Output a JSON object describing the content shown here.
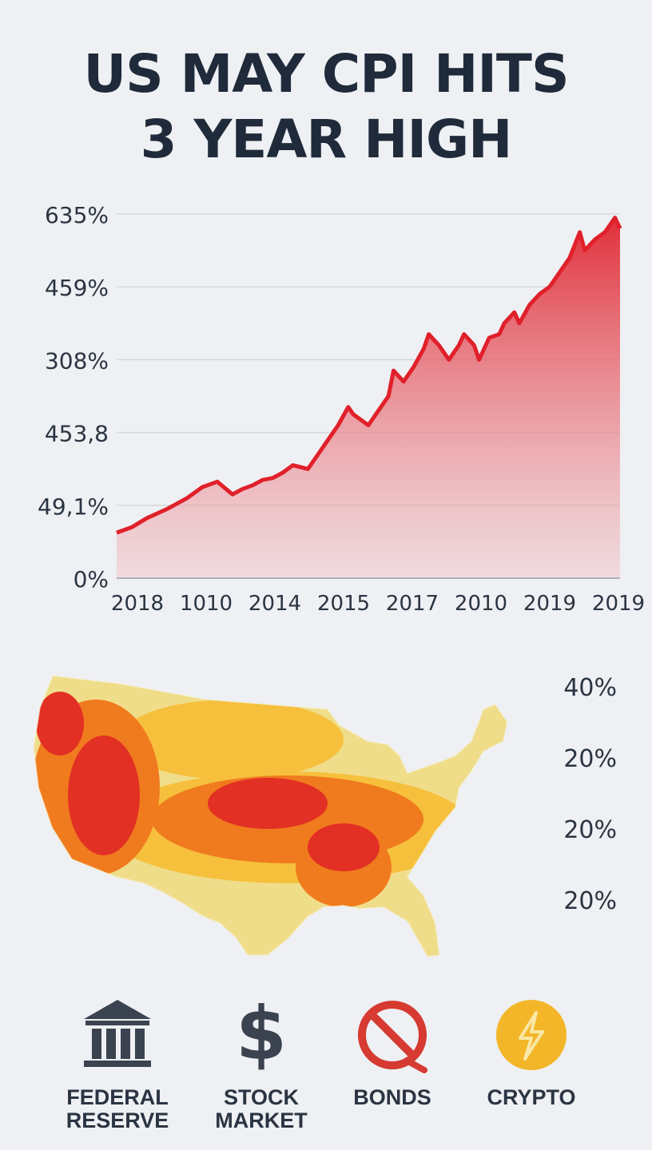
{
  "title": {
    "line1": "US MAY CPI HITS",
    "line2": "3 YEAR HIGH"
  },
  "chart_data": {
    "type": "area",
    "title": "US MAY CPI HITS 3 YEAR HIGH",
    "y_tick_labels": [
      "635%",
      "459%",
      "308%",
      "453,8",
      "49,1%",
      "0%"
    ],
    "x_tick_labels": [
      "2018",
      "1010",
      "2014",
      "2015",
      "2017",
      "2010",
      "2019",
      "2019"
    ],
    "series": [
      {
        "color": "#e0202a",
        "x": [
          0,
          0.03,
          0.06,
          0.1,
          0.14,
          0.17,
          0.2,
          0.23,
          0.25,
          0.27,
          0.29,
          0.31,
          0.33,
          0.35,
          0.38,
          0.4,
          0.42,
          0.44,
          0.46,
          0.47,
          0.49,
          0.5,
          0.52,
          0.54,
          0.55,
          0.57,
          0.59,
          0.61,
          0.62,
          0.64,
          0.66,
          0.68,
          0.69,
          0.71,
          0.72,
          0.74,
          0.76,
          0.77,
          0.79,
          0.8,
          0.82,
          0.84,
          0.86,
          0.88,
          0.9,
          0.92,
          0.93,
          0.95,
          0.97,
          0.99,
          1.0
        ],
        "y": [
          0.125,
          0.14,
          0.165,
          0.19,
          0.22,
          0.25,
          0.265,
          0.23,
          0.245,
          0.255,
          0.27,
          0.275,
          0.29,
          0.31,
          0.3,
          0.34,
          0.38,
          0.42,
          0.47,
          0.45,
          0.43,
          0.42,
          0.46,
          0.5,
          0.57,
          0.54,
          0.58,
          0.63,
          0.67,
          0.64,
          0.6,
          0.64,
          0.67,
          0.64,
          0.6,
          0.66,
          0.67,
          0.7,
          0.73,
          0.7,
          0.75,
          0.78,
          0.8,
          0.84,
          0.88,
          0.95,
          0.9,
          0.93,
          0.95,
          0.99,
          0.96
        ]
      }
    ],
    "ylim": [
      0,
      1
    ],
    "grid": true
  },
  "map_legend": [
    "40%",
    "20%",
    "20%",
    "20%"
  ],
  "map_colors": {
    "high": "#e23024",
    "mid": "#f07b1e",
    "low": "#f6c03c",
    "base": "#f0dd8a"
  },
  "icons": [
    {
      "name": "bank-icon",
      "label": "FEDERAL RESERVE",
      "line1": "FEDERAL",
      "line2": "RESERVE"
    },
    {
      "name": "dollar-icon",
      "label": "STOCK MARKET",
      "line1": "STOCK",
      "line2": "MARKET"
    },
    {
      "name": "prohibited-icon",
      "label": "BONDS",
      "line1": "BONDS",
      "line2": ""
    },
    {
      "name": "lightning-icon",
      "label": "CRYPTO",
      "line1": "CRYPTO",
      "line2": ""
    }
  ]
}
